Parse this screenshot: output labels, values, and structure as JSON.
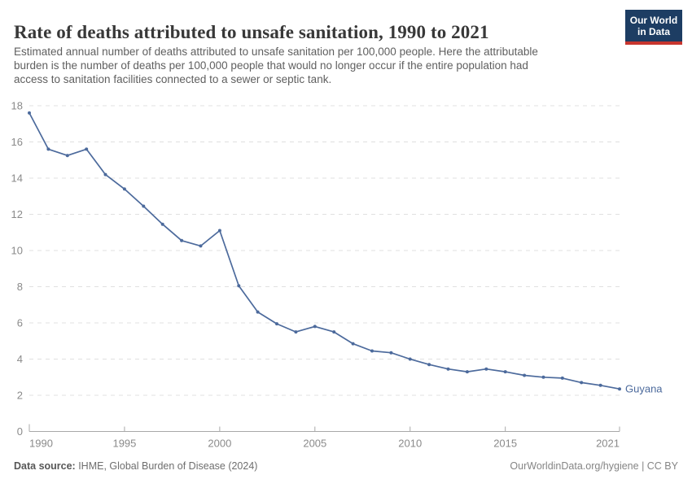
{
  "header": {
    "title": "Rate of deaths attributed to unsafe sanitation, 1990 to 2021",
    "logo": {
      "line1": "Our World",
      "line2": "in Data"
    },
    "subtitle_lines": [
      "Estimated annual number of deaths attributed to unsafe sanitation per 100,000 people. Here the attributable",
      "burden is the number of deaths per 100,000 people that would no longer occur if the entire population had",
      "access to sanitation facilities connected to a sewer or septic tank."
    ]
  },
  "chart_data": {
    "type": "line",
    "title": "Rate of deaths attributed to unsafe sanitation, 1990 to 2021",
    "xlabel": "",
    "ylabel": "",
    "xlim": [
      1990,
      2021
    ],
    "ylim": [
      0,
      18
    ],
    "x_ticks": [
      1990,
      1995,
      2000,
      2005,
      2010,
      2015,
      2021
    ],
    "y_ticks": [
      0,
      2,
      4,
      6,
      8,
      10,
      12,
      14,
      16,
      18
    ],
    "grid": "horizontal-dashed",
    "legend_position": "end-of-line-label",
    "series": [
      {
        "name": "Guyana",
        "color": "#4c6a9c",
        "x": [
          1990,
          1991,
          1992,
          1993,
          1994,
          1995,
          1996,
          1997,
          1998,
          1999,
          2000,
          2001,
          2002,
          2003,
          2004,
          2005,
          2006,
          2007,
          2008,
          2009,
          2010,
          2011,
          2012,
          2013,
          2014,
          2015,
          2016,
          2017,
          2018,
          2019,
          2020,
          2021
        ],
        "values": [
          17.6,
          15.6,
          15.25,
          15.6,
          14.2,
          13.4,
          12.45,
          11.45,
          10.55,
          10.25,
          11.1,
          8.05,
          6.6,
          5.95,
          5.5,
          5.8,
          5.5,
          4.85,
          4.45,
          4.35,
          4.0,
          3.7,
          3.45,
          3.3,
          3.45,
          3.3,
          3.1,
          3.0,
          2.95,
          2.7,
          2.55,
          2.35
        ]
      }
    ]
  },
  "footer": {
    "source_label": "Data source:",
    "source_text": " IHME, Global Burden of Disease (2024)",
    "credit": "OurWorldinData.org/hygiene | CC BY"
  },
  "colors": {
    "line": "#4c6a9c",
    "grid": "#e0e0e0",
    "axis": "#a8a8a8",
    "tick_label": "#8a8a8a",
    "logo_bg": "#1d3d63",
    "logo_accent": "#c7352e"
  }
}
